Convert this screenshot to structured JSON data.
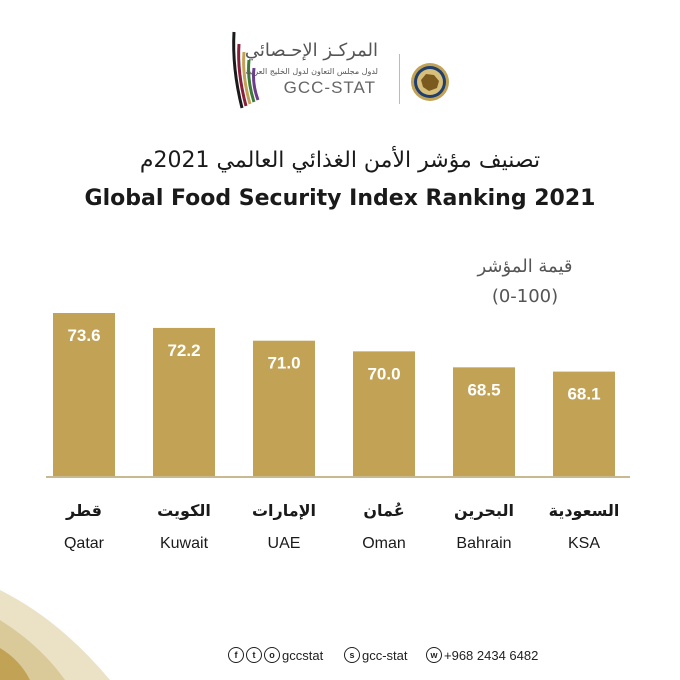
{
  "logo": {
    "org_ar": "المركـز الإحـصائي",
    "org_sub_ar": "لدول مجلس التعاون لدول الخليج العربية",
    "org_en": "GCC-STAT"
  },
  "title_ar": "تصنيف مؤشر الأمن الغذائي العالمي 2021م",
  "title_en": "Global Food Security Index Ranking 2021",
  "axis_note_ar": "قيمة المؤشر",
  "axis_note_range": "(0-100)",
  "chart_data": {
    "type": "bar",
    "title": "Global Food Security Index Ranking 2021",
    "ylabel": "(0-100)",
    "categories": [
      "Qatar",
      "Kuwait",
      "UAE",
      "Oman",
      "Bahrain",
      "KSA"
    ],
    "categories_ar": [
      "قطر",
      "الكويت",
      "الإمارات",
      "عُمان",
      "البحرين",
      "السعودية"
    ],
    "values": [
      73.6,
      72.2,
      71.0,
      70.0,
      68.5,
      68.1
    ],
    "value_labels": [
      "73.6",
      "72.2",
      "71.0",
      "70.0",
      "68.5",
      "68.1"
    ],
    "ylim": [
      58.3,
      73.6
    ],
    "colors": {
      "bar": "#c2a356",
      "label": "#ffffff",
      "baseline": "#c8b990"
    }
  },
  "footer": {
    "social_handle": "gccstat",
    "snapchat": "gcc-stat",
    "whatsapp": "+968 2434 6482"
  }
}
